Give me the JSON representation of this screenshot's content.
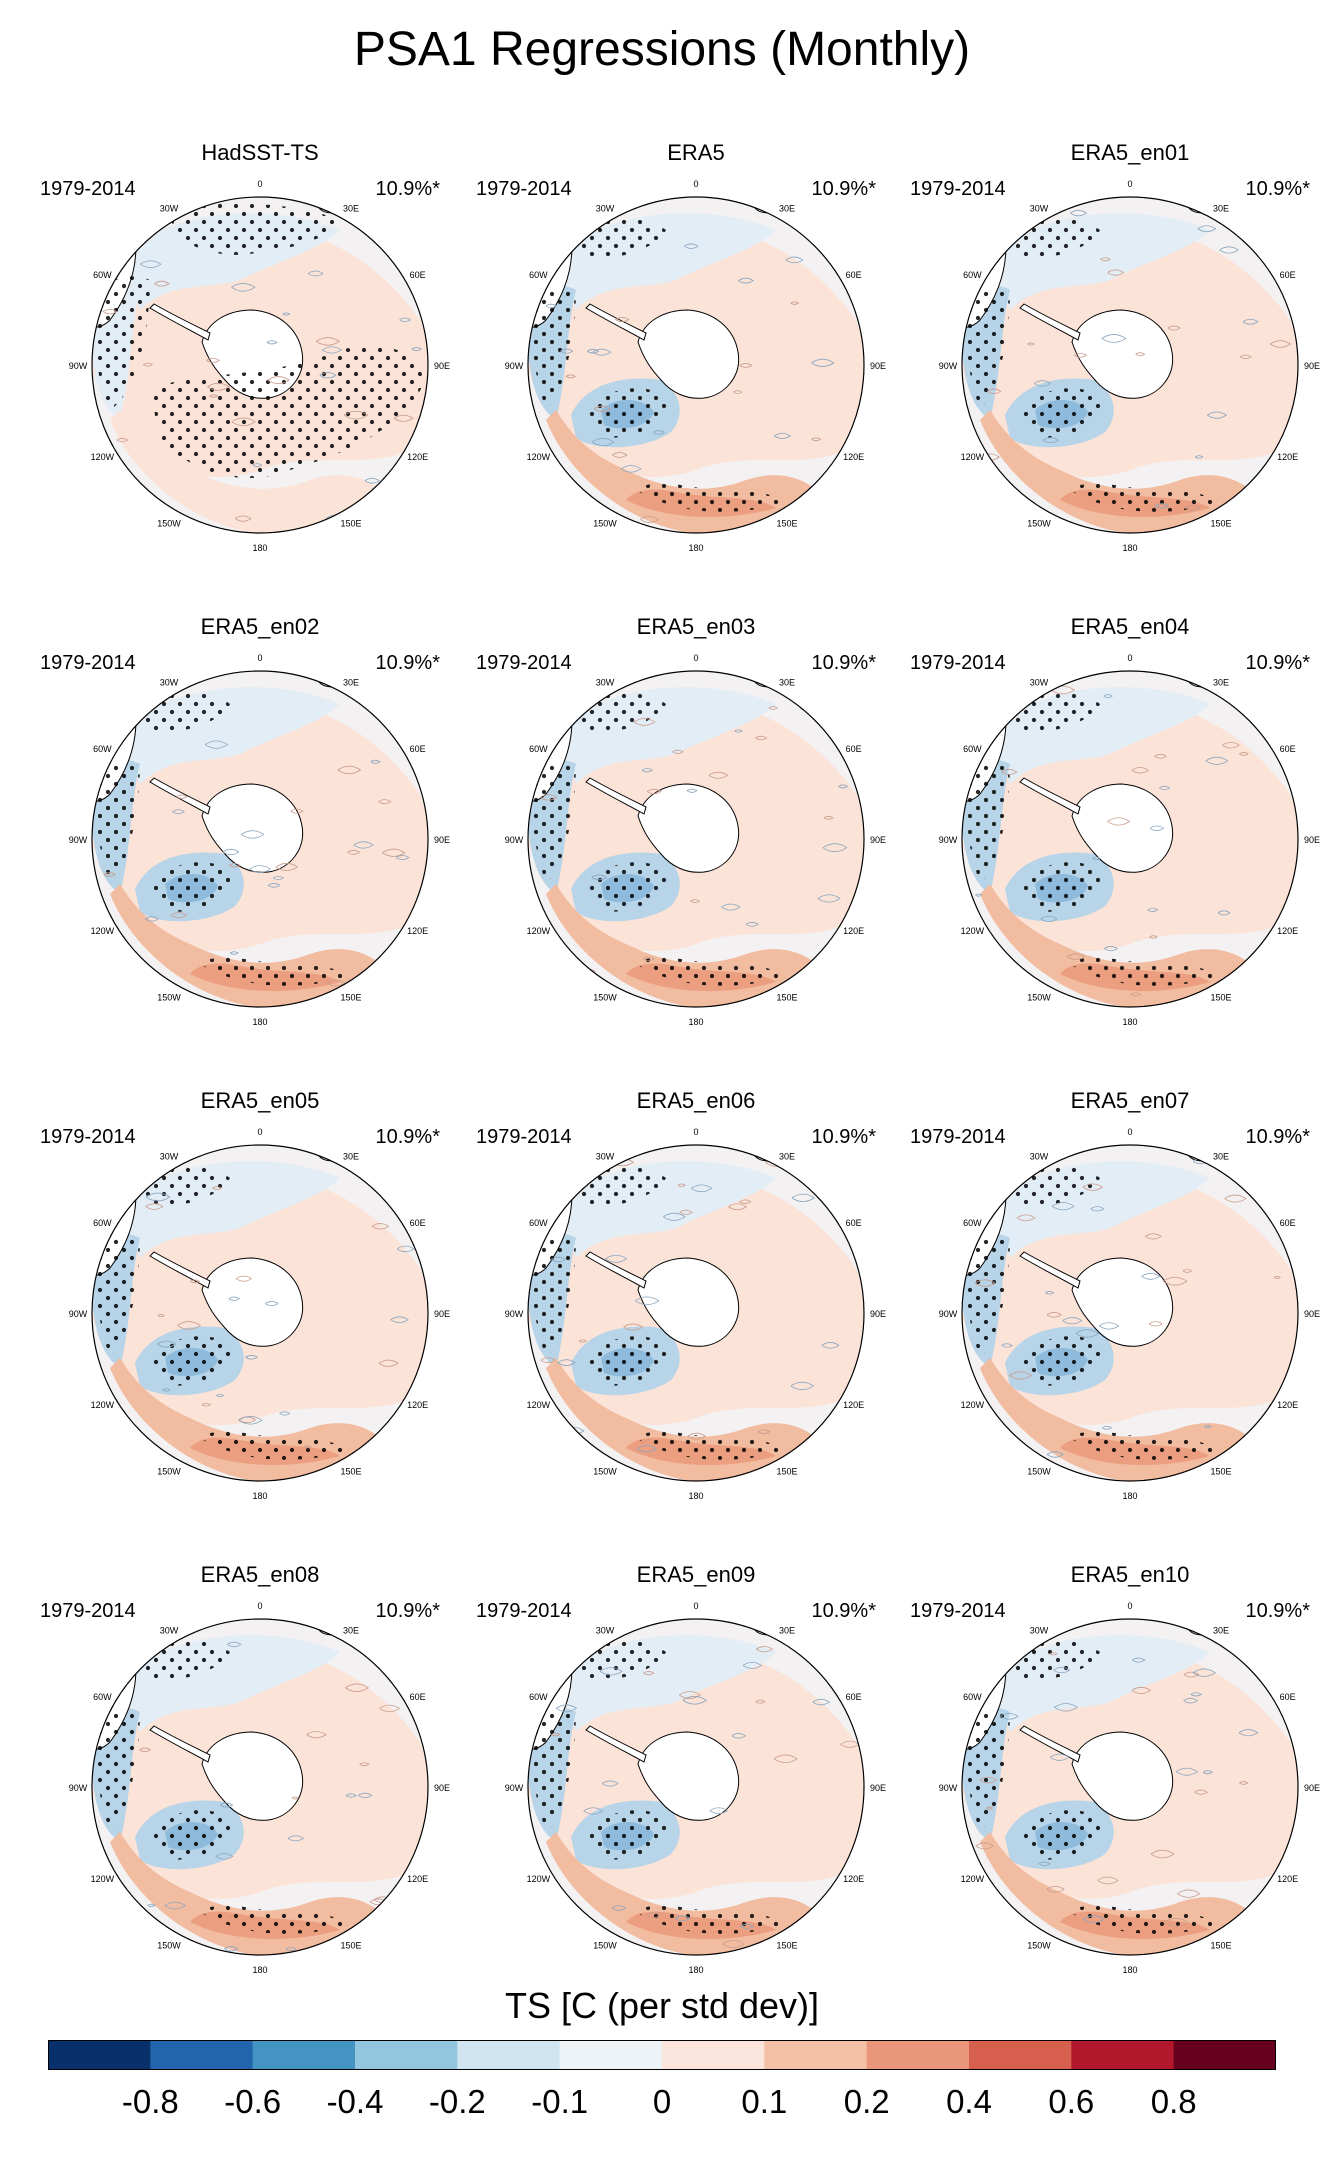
{
  "figure": {
    "title": "PSA1 Regressions (Monthly)"
  },
  "panels": [
    {
      "title": "HadSST-TS",
      "period": "1979-2014",
      "variance": "10.9%*",
      "pattern": "hadsst"
    },
    {
      "title": "ERA5",
      "period": "1979-2014",
      "variance": "10.9%*",
      "pattern": "era5"
    },
    {
      "title": "ERA5_en01",
      "period": "1979-2014",
      "variance": "10.9%*",
      "pattern": "era5"
    },
    {
      "title": "ERA5_en02",
      "period": "1979-2014",
      "variance": "10.9%*",
      "pattern": "era5"
    },
    {
      "title": "ERA5_en03",
      "period": "1979-2014",
      "variance": "10.9%*",
      "pattern": "era5"
    },
    {
      "title": "ERA5_en04",
      "period": "1979-2014",
      "variance": "10.9%*",
      "pattern": "era5"
    },
    {
      "title": "ERA5_en05",
      "period": "1979-2014",
      "variance": "10.9%*",
      "pattern": "era5"
    },
    {
      "title": "ERA5_en06",
      "period": "1979-2014",
      "variance": "10.9%*",
      "pattern": "era5"
    },
    {
      "title": "ERA5_en07",
      "period": "1979-2014",
      "variance": "10.9%*",
      "pattern": "era5"
    },
    {
      "title": "ERA5_en08",
      "period": "1979-2014",
      "variance": "10.9%*",
      "pattern": "era5"
    },
    {
      "title": "ERA5_en09",
      "period": "1979-2014",
      "variance": "10.9%*",
      "pattern": "era5"
    },
    {
      "title": "ERA5_en10",
      "period": "1979-2014",
      "variance": "10.9%*",
      "pattern": "era5"
    }
  ],
  "longitude_labels": [
    {
      "text": "0",
      "lon": 0
    },
    {
      "text": "30E",
      "lon": 30
    },
    {
      "text": "60E",
      "lon": 60
    },
    {
      "text": "90E",
      "lon": 90
    },
    {
      "text": "120E",
      "lon": 120
    },
    {
      "text": "150E",
      "lon": 150
    },
    {
      "text": "180",
      "lon": 180
    },
    {
      "text": "150W",
      "lon": 210
    },
    {
      "text": "120W",
      "lon": 240
    },
    {
      "text": "90W",
      "lon": 270
    },
    {
      "text": "60W",
      "lon": 300
    },
    {
      "text": "30W",
      "lon": 330
    }
  ],
  "colorbar": {
    "title": "TS [C (per std dev)]",
    "colors": [
      "#08306b",
      "#2166ac",
      "#4393c3",
      "#92c5de",
      "#d1e5f0",
      "#eef3f8",
      "#fbe5dc",
      "#f4c0a6",
      "#e9967a",
      "#d6604d",
      "#b2182b",
      "#67001f"
    ],
    "tick_labels": [
      "-0.8",
      "-0.6",
      "-0.4",
      "-0.2",
      "-0.1",
      "0",
      "0.1",
      "0.2",
      "0.4",
      "0.6",
      "0.8"
    ]
  },
  "map_colors": {
    "ocean_neutral": "#f3f1f1",
    "pos_weak": "#fbe3d8",
    "pos_mid": "#f2bca1",
    "pos_strong": "#ec9f80",
    "neg_weak": "#e3edf5",
    "neg_mid": "#b7d4e8",
    "neg_strong": "#8ebbdc",
    "land": "#ffffff"
  }
}
